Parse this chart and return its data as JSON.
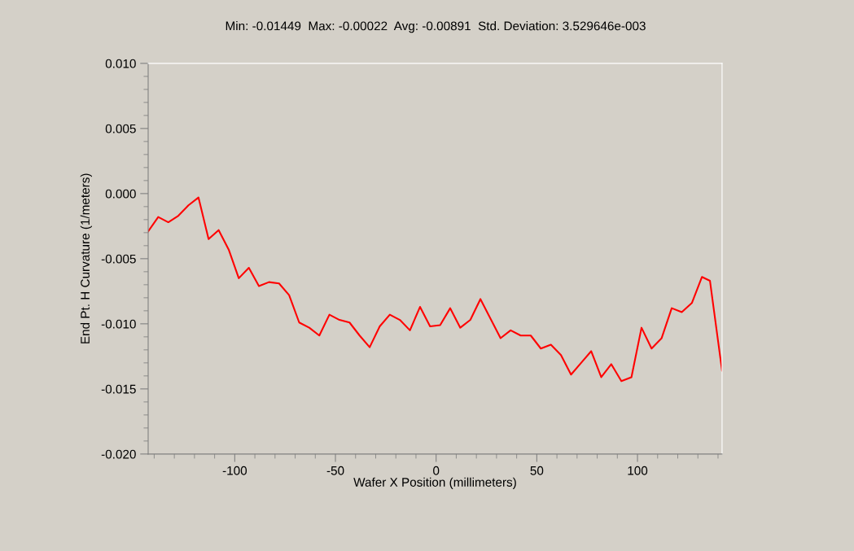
{
  "chart_data": {
    "type": "line",
    "title": "Min: -0.01449  Max: -0.00022  Avg: -0.00891  Std. Deviation: 3.529646e-003",
    "xlabel": "Wafer X Position (millimeters)",
    "ylabel": "End Pt. H Curvature (1/meters)",
    "xlim": [
      -143,
      142
    ],
    "xticks": [
      -100,
      -50,
      0,
      50,
      100
    ],
    "ylim": [
      -0.02,
      0.01
    ],
    "yticks": [
      {
        "value": -0.02,
        "label": "-0.020"
      },
      {
        "value": -0.015,
        "label": "-0.015"
      },
      {
        "value": -0.01,
        "label": "-0.010"
      },
      {
        "value": -0.005,
        "label": "-0.005"
      },
      {
        "value": 0,
        "label": "0.000"
      },
      {
        "value": 0.005,
        "label": "0.005"
      },
      {
        "value": 0.01,
        "label": "0.010"
      }
    ],
    "grid": false,
    "legend": false,
    "marker": "none",
    "line_style": "solid",
    "x": [
      -143,
      -138,
      -133,
      -128,
      -123,
      -118,
      -113,
      -108,
      -103,
      -98,
      -93,
      -88,
      -83,
      -78,
      -73,
      -68,
      -63,
      -58,
      -53,
      -48,
      -43,
      -38,
      -33,
      -28,
      -23,
      -18,
      -13,
      -8,
      -3,
      2,
      7,
      12,
      17,
      22,
      27,
      32,
      37,
      42,
      47,
      52,
      57,
      62,
      67,
      72,
      77,
      82,
      87,
      92,
      97,
      102,
      107,
      112,
      117,
      122,
      127,
      132,
      136,
      142
    ],
    "series": [
      {
        "color": "#ff0000",
        "values": [
          -0.0029,
          -0.0018,
          -0.0022,
          -0.0017,
          -0.0009,
          -0.0003,
          -0.0035,
          -0.0028,
          -0.0043,
          -0.0065,
          -0.0057,
          -0.0071,
          -0.0068,
          -0.0069,
          -0.0078,
          -0.0099,
          -0.0103,
          -0.0109,
          -0.0093,
          -0.0097,
          -0.0099,
          -0.0109,
          -0.0118,
          -0.0102,
          -0.0093,
          -0.0097,
          -0.0105,
          -0.0087,
          -0.0102,
          -0.0101,
          -0.0088,
          -0.0103,
          -0.0097,
          -0.0081,
          -0.0096,
          -0.0111,
          -0.0105,
          -0.0109,
          -0.0109,
          -0.0119,
          -0.0116,
          -0.0124,
          -0.0139,
          -0.013,
          -0.0121,
          -0.0141,
          -0.0131,
          -0.0144,
          -0.0141,
          -0.0103,
          -0.0119,
          -0.0111,
          -0.0088,
          -0.0091,
          -0.0084,
          -0.0064,
          -0.0067,
          -0.0136
        ]
      }
    ]
  }
}
